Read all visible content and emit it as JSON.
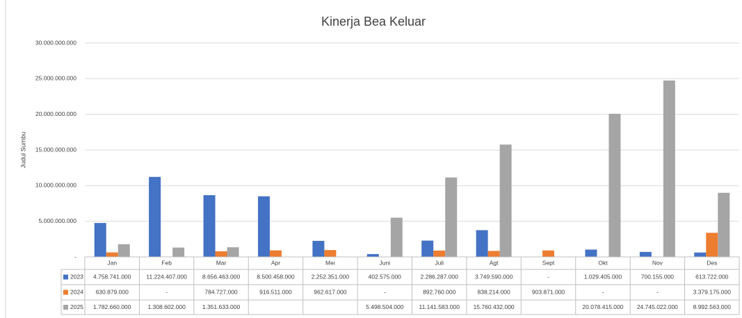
{
  "chart_data": {
    "type": "bar",
    "title": "Kinerja Bea Keluar",
    "y_axis_label": "Judul Sumbu",
    "categories": [
      "Jan",
      "Feb",
      "Mar",
      "Apr",
      "Mei",
      "Juni",
      "Juli",
      "Agt",
      "Sept",
      "Okt",
      "Nov",
      "Des"
    ],
    "series": [
      {
        "name": "2023",
        "color": "#4472c4",
        "values": [
          4758741000,
          11224407000,
          8656463000,
          8500458000,
          2252351000,
          402575000,
          2286287000,
          3749590000,
          0,
          1029405000,
          700155000,
          613722000
        ],
        "value_labels": [
          "4.758.741.000",
          "11.224.407.000",
          "8.656.463.000",
          "8.500.458.000",
          "2.252.351.000",
          "402.575.000",
          "2.286.287.000",
          "3.749.590.000",
          "-",
          "1.029.405.000",
          "700.155.000",
          "613.722.000"
        ]
      },
      {
        "name": "2024",
        "color": "#ed7d31",
        "values": [
          630879000,
          0,
          784727000,
          916511000,
          962617000,
          0,
          892760000,
          838214000,
          903871000,
          0,
          0,
          3379175000
        ],
        "value_labels": [
          "630.879.000",
          "-",
          "784.727.000",
          "916.511.000",
          "962.617.000",
          "-",
          "892.760.000",
          "838.214.000",
          "903.871.000",
          "-",
          "-",
          "3.379.175.000"
        ]
      },
      {
        "name": "2025",
        "color": "#a5a5a5",
        "values": [
          1782660000,
          1308602000,
          1351633000,
          null,
          null,
          5498504000,
          11141583000,
          15760432000,
          null,
          20078415000,
          24745022000,
          8992563000
        ],
        "value_labels": [
          "1.782.660.000",
          "1.308.602.000",
          "1.351.633.000",
          null,
          null,
          "5.498.504.000",
          "11.141.583.000",
          "15.760.432.000",
          null,
          "20.078.415.000",
          "24.745.022.000",
          "8.992.563.000"
        ]
      }
    ],
    "ylim": [
      0,
      30000000000
    ],
    "yticks": [
      {
        "value": 0,
        "label": "-"
      },
      {
        "value": 5000000000,
        "label": "5.000.000.000"
      },
      {
        "value": 10000000000,
        "label": "10.000.000.000"
      },
      {
        "value": 15000000000,
        "label": "15.000.000.000"
      },
      {
        "value": 20000000000,
        "label": "20.000.000.000"
      },
      {
        "value": 25000000000,
        "label": "25.000.000.000"
      },
      {
        "value": 30000000000,
        "label": "30.000.000.000"
      }
    ],
    "grid": true
  }
}
